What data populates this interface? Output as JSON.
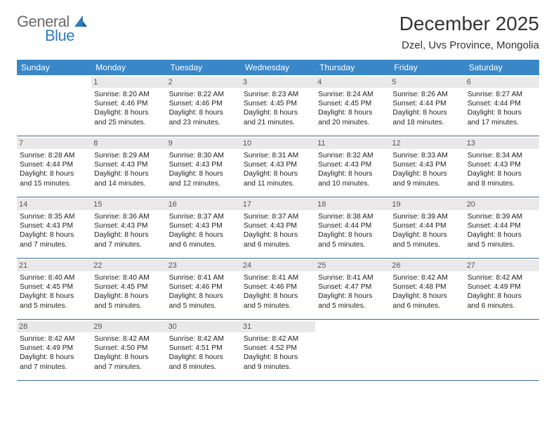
{
  "logo": {
    "text1": "General",
    "text2": "Blue"
  },
  "title": "December 2025",
  "location": "Dzel, Uvs Province, Mongolia",
  "colors": {
    "header_bg": "#3a87c8",
    "header_text": "#ffffff",
    "daynum_bg": "#e9e9e9",
    "daynum_text": "#555555",
    "rule": "#3a6c9a",
    "logo_gray": "#6b6b6b",
    "logo_blue": "#2d7bc0"
  },
  "dow": [
    "Sunday",
    "Monday",
    "Tuesday",
    "Wednesday",
    "Thursday",
    "Friday",
    "Saturday"
  ],
  "weeks": [
    [
      null,
      {
        "n": "1",
        "sr": "Sunrise: 8:20 AM",
        "ss": "Sunset: 4:46 PM",
        "d1": "Daylight: 8 hours",
        "d2": "and 25 minutes."
      },
      {
        "n": "2",
        "sr": "Sunrise: 8:22 AM",
        "ss": "Sunset: 4:46 PM",
        "d1": "Daylight: 8 hours",
        "d2": "and 23 minutes."
      },
      {
        "n": "3",
        "sr": "Sunrise: 8:23 AM",
        "ss": "Sunset: 4:45 PM",
        "d1": "Daylight: 8 hours",
        "d2": "and 21 minutes."
      },
      {
        "n": "4",
        "sr": "Sunrise: 8:24 AM",
        "ss": "Sunset: 4:45 PM",
        "d1": "Daylight: 8 hours",
        "d2": "and 20 minutes."
      },
      {
        "n": "5",
        "sr": "Sunrise: 8:26 AM",
        "ss": "Sunset: 4:44 PM",
        "d1": "Daylight: 8 hours",
        "d2": "and 18 minutes."
      },
      {
        "n": "6",
        "sr": "Sunrise: 8:27 AM",
        "ss": "Sunset: 4:44 PM",
        "d1": "Daylight: 8 hours",
        "d2": "and 17 minutes."
      }
    ],
    [
      {
        "n": "7",
        "sr": "Sunrise: 8:28 AM",
        "ss": "Sunset: 4:44 PM",
        "d1": "Daylight: 8 hours",
        "d2": "and 15 minutes."
      },
      {
        "n": "8",
        "sr": "Sunrise: 8:29 AM",
        "ss": "Sunset: 4:43 PM",
        "d1": "Daylight: 8 hours",
        "d2": "and 14 minutes."
      },
      {
        "n": "9",
        "sr": "Sunrise: 8:30 AM",
        "ss": "Sunset: 4:43 PM",
        "d1": "Daylight: 8 hours",
        "d2": "and 12 minutes."
      },
      {
        "n": "10",
        "sr": "Sunrise: 8:31 AM",
        "ss": "Sunset: 4:43 PM",
        "d1": "Daylight: 8 hours",
        "d2": "and 11 minutes."
      },
      {
        "n": "11",
        "sr": "Sunrise: 8:32 AM",
        "ss": "Sunset: 4:43 PM",
        "d1": "Daylight: 8 hours",
        "d2": "and 10 minutes."
      },
      {
        "n": "12",
        "sr": "Sunrise: 8:33 AM",
        "ss": "Sunset: 4:43 PM",
        "d1": "Daylight: 8 hours",
        "d2": "and 9 minutes."
      },
      {
        "n": "13",
        "sr": "Sunrise: 8:34 AM",
        "ss": "Sunset: 4:43 PM",
        "d1": "Daylight: 8 hours",
        "d2": "and 8 minutes."
      }
    ],
    [
      {
        "n": "14",
        "sr": "Sunrise: 8:35 AM",
        "ss": "Sunset: 4:43 PM",
        "d1": "Daylight: 8 hours",
        "d2": "and 7 minutes."
      },
      {
        "n": "15",
        "sr": "Sunrise: 8:36 AM",
        "ss": "Sunset: 4:43 PM",
        "d1": "Daylight: 8 hours",
        "d2": "and 7 minutes."
      },
      {
        "n": "16",
        "sr": "Sunrise: 8:37 AM",
        "ss": "Sunset: 4:43 PM",
        "d1": "Daylight: 8 hours",
        "d2": "and 6 minutes."
      },
      {
        "n": "17",
        "sr": "Sunrise: 8:37 AM",
        "ss": "Sunset: 4:43 PM",
        "d1": "Daylight: 8 hours",
        "d2": "and 6 minutes."
      },
      {
        "n": "18",
        "sr": "Sunrise: 8:38 AM",
        "ss": "Sunset: 4:44 PM",
        "d1": "Daylight: 8 hours",
        "d2": "and 5 minutes."
      },
      {
        "n": "19",
        "sr": "Sunrise: 8:39 AM",
        "ss": "Sunset: 4:44 PM",
        "d1": "Daylight: 8 hours",
        "d2": "and 5 minutes."
      },
      {
        "n": "20",
        "sr": "Sunrise: 8:39 AM",
        "ss": "Sunset: 4:44 PM",
        "d1": "Daylight: 8 hours",
        "d2": "and 5 minutes."
      }
    ],
    [
      {
        "n": "21",
        "sr": "Sunrise: 8:40 AM",
        "ss": "Sunset: 4:45 PM",
        "d1": "Daylight: 8 hours",
        "d2": "and 5 minutes."
      },
      {
        "n": "22",
        "sr": "Sunrise: 8:40 AM",
        "ss": "Sunset: 4:45 PM",
        "d1": "Daylight: 8 hours",
        "d2": "and 5 minutes."
      },
      {
        "n": "23",
        "sr": "Sunrise: 8:41 AM",
        "ss": "Sunset: 4:46 PM",
        "d1": "Daylight: 8 hours",
        "d2": "and 5 minutes."
      },
      {
        "n": "24",
        "sr": "Sunrise: 8:41 AM",
        "ss": "Sunset: 4:46 PM",
        "d1": "Daylight: 8 hours",
        "d2": "and 5 minutes."
      },
      {
        "n": "25",
        "sr": "Sunrise: 8:41 AM",
        "ss": "Sunset: 4:47 PM",
        "d1": "Daylight: 8 hours",
        "d2": "and 5 minutes."
      },
      {
        "n": "26",
        "sr": "Sunrise: 8:42 AM",
        "ss": "Sunset: 4:48 PM",
        "d1": "Daylight: 8 hours",
        "d2": "and 6 minutes."
      },
      {
        "n": "27",
        "sr": "Sunrise: 8:42 AM",
        "ss": "Sunset: 4:49 PM",
        "d1": "Daylight: 8 hours",
        "d2": "and 6 minutes."
      }
    ],
    [
      {
        "n": "28",
        "sr": "Sunrise: 8:42 AM",
        "ss": "Sunset: 4:49 PM",
        "d1": "Daylight: 8 hours",
        "d2": "and 7 minutes."
      },
      {
        "n": "29",
        "sr": "Sunrise: 8:42 AM",
        "ss": "Sunset: 4:50 PM",
        "d1": "Daylight: 8 hours",
        "d2": "and 7 minutes."
      },
      {
        "n": "30",
        "sr": "Sunrise: 8:42 AM",
        "ss": "Sunset: 4:51 PM",
        "d1": "Daylight: 8 hours",
        "d2": "and 8 minutes."
      },
      {
        "n": "31",
        "sr": "Sunrise: 8:42 AM",
        "ss": "Sunset: 4:52 PM",
        "d1": "Daylight: 8 hours",
        "d2": "and 9 minutes."
      },
      null,
      null,
      null
    ]
  ]
}
